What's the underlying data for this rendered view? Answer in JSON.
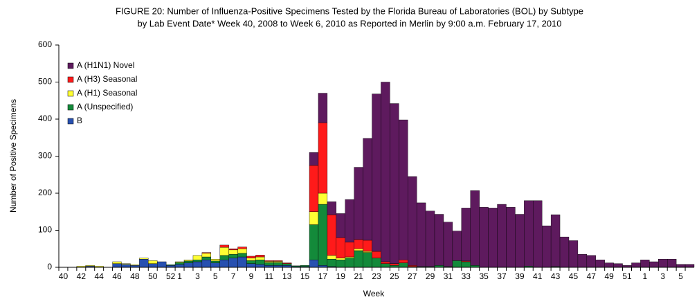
{
  "chart_data": {
    "type": "stacked_bar",
    "title": [
      "FIGURE 20: Number of Influenza-Positive Specimens Tested by the Florida Bureau of Laboratories (BOL) by Subtype",
      "by Lab Event Date* Week 40, 2008 to Week 6, 2010 as Reported in Merlin by 9:00 a.m. February 17, 2010"
    ],
    "x_label": "Week",
    "y_label": "Number of Positive Specimens",
    "categories": [
      "40",
      null,
      "42",
      null,
      "44",
      null,
      "46",
      null,
      "48",
      null,
      "50",
      null,
      "52",
      "1",
      null,
      "3",
      null,
      "5",
      null,
      "7",
      null,
      "9",
      null,
      "11",
      null,
      "13",
      null,
      "15",
      null,
      "17",
      null,
      "19",
      null,
      "21",
      null,
      "23",
      null,
      "25",
      null,
      "27",
      null,
      "29",
      null,
      "31",
      null,
      "33",
      null,
      "35",
      null,
      "37",
      null,
      "39",
      null,
      "41",
      null,
      "43",
      null,
      "45",
      null,
      "47",
      null,
      "49",
      null,
      "51",
      null,
      "1",
      null,
      "3",
      null,
      "5",
      null
    ],
    "ylim": [
      0,
      600
    ],
    "yticks": [
      0,
      100,
      200,
      300,
      400,
      500,
      600
    ],
    "series": [
      {
        "name": "A (H1N1) Novel",
        "color": "#5e1a5e",
        "values": [
          0,
          0,
          0,
          0,
          0,
          0,
          0,
          0,
          0,
          0,
          0,
          0,
          0,
          0,
          0,
          0,
          0,
          0,
          0,
          0,
          0,
          0,
          0,
          0,
          0,
          0,
          0,
          0,
          35,
          80,
          35,
          65,
          115,
          195,
          275,
          425,
          485,
          432,
          378,
          240,
          172,
          150,
          138,
          120,
          80,
          143,
          202,
          162,
          160,
          170,
          162,
          143,
          177,
          180,
          112,
          140,
          82,
          72,
          35,
          32,
          20,
          12,
          10,
          5,
          12,
          20,
          15,
          22,
          22,
          8,
          8
        ]
      },
      {
        "name": "A (H3) Seasonal",
        "color": "#ff1a1a",
        "values": [
          0,
          0,
          0,
          0,
          0,
          0,
          0,
          0,
          0,
          0,
          0,
          0,
          0,
          0,
          0,
          0,
          2,
          0,
          6,
          3,
          5,
          5,
          5,
          2,
          2,
          2,
          0,
          0,
          125,
          190,
          110,
          55,
          40,
          25,
          30,
          18,
          5,
          5,
          8,
          3,
          0,
          0,
          0,
          0,
          0,
          2,
          0,
          0,
          0,
          0,
          0,
          0,
          0,
          0,
          0,
          0,
          0,
          0,
          0,
          0,
          0,
          0,
          0,
          0,
          0,
          0,
          0,
          0,
          0,
          0,
          0
        ]
      },
      {
        "name": "A (H1) Seasonal",
        "color": "#ffff33",
        "values": [
          0,
          0,
          3,
          2,
          3,
          0,
          5,
          2,
          2,
          3,
          8,
          0,
          0,
          2,
          3,
          12,
          10,
          5,
          22,
          12,
          12,
          7,
          8,
          3,
          3,
          0,
          0,
          0,
          35,
          30,
          10,
          5,
          3,
          5,
          3,
          0,
          0,
          0,
          0,
          0,
          0,
          0,
          0,
          0,
          0,
          0,
          0,
          0,
          0,
          0,
          0,
          0,
          0,
          0,
          0,
          0,
          0,
          0,
          0,
          0,
          0,
          0,
          0,
          0,
          0,
          0,
          0,
          0,
          0,
          0,
          0
        ]
      },
      {
        "name": "A (Unspecified)",
        "color": "#138a3a",
        "values": [
          0,
          0,
          0,
          0,
          0,
          0,
          0,
          0,
          0,
          0,
          0,
          0,
          2,
          5,
          5,
          5,
          8,
          5,
          12,
          10,
          10,
          8,
          12,
          8,
          8,
          5,
          2,
          3,
          95,
          165,
          20,
          20,
          25,
          45,
          40,
          25,
          10,
          5,
          12,
          2,
          2,
          2,
          5,
          2,
          18,
          15,
          5,
          0,
          0,
          0,
          0,
          0,
          3,
          0,
          0,
          2,
          0,
          0,
          0,
          0,
          0,
          0,
          0,
          0,
          0,
          0,
          0,
          0,
          0,
          0,
          0
        ]
      },
      {
        "name": "B",
        "color": "#2750b0",
        "values": [
          0,
          0,
          0,
          3,
          0,
          0,
          10,
          8,
          5,
          22,
          10,
          15,
          5,
          8,
          12,
          15,
          20,
          12,
          20,
          25,
          28,
          10,
          8,
          5,
          5,
          5,
          2,
          2,
          20,
          5,
          2,
          0,
          0,
          0,
          0,
          0,
          0,
          0,
          0,
          0,
          0,
          0,
          0,
          0,
          0,
          0,
          0,
          0,
          0,
          0,
          0,
          0,
          0,
          0,
          0,
          0,
          0,
          0,
          0,
          0,
          0,
          0,
          0,
          0,
          0,
          0,
          0,
          0,
          0,
          0,
          0
        ]
      }
    ]
  }
}
